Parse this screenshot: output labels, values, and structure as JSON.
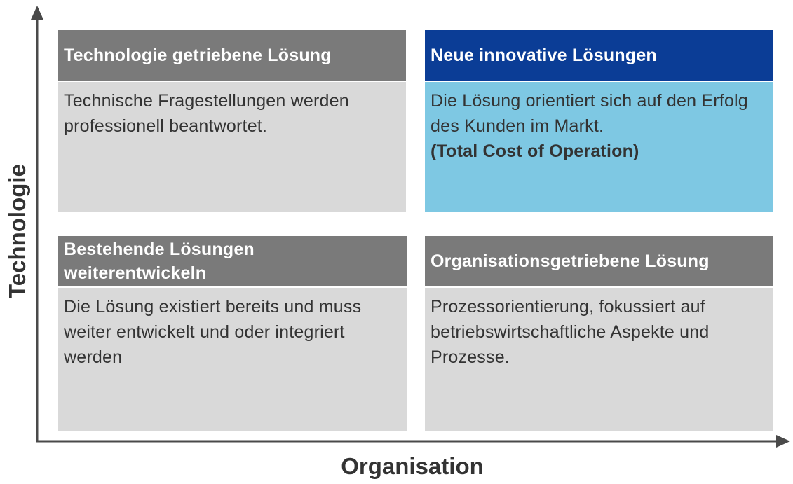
{
  "axes": {
    "y_label": "Technologie",
    "x_label": "Organisation",
    "color": "#4a4a4a"
  },
  "quadrants": {
    "top_left": {
      "title": "Technologie getriebene Lösung",
      "text": "Technische Fragestellungen werden professionell beantwortet.",
      "header_color": "#7a7a7a",
      "body_color": "#d9d9d9"
    },
    "top_right": {
      "title": "Neue innovative Lösungen",
      "text": "Die Lösung orientiert sich auf den Erfolg des Kunden im Markt.",
      "text_bold": "(Total Cost of Operation)",
      "header_color": "#0b3d96",
      "body_color": "#7ec8e3"
    },
    "bottom_left": {
      "title": "Bestehende Lösungen weiterentwickeln",
      "text": "Die Lösung existiert bereits und muss weiter entwickelt und oder integriert werden",
      "header_color": "#7a7a7a",
      "body_color": "#d9d9d9"
    },
    "bottom_right": {
      "title": "Organisationsgetriebene Lösung",
      "text": "Prozessorientierung, fokussiert auf betriebswirtschaftliche Aspekte und Prozesse.",
      "header_color": "#7a7a7a",
      "body_color": "#d9d9d9"
    }
  }
}
